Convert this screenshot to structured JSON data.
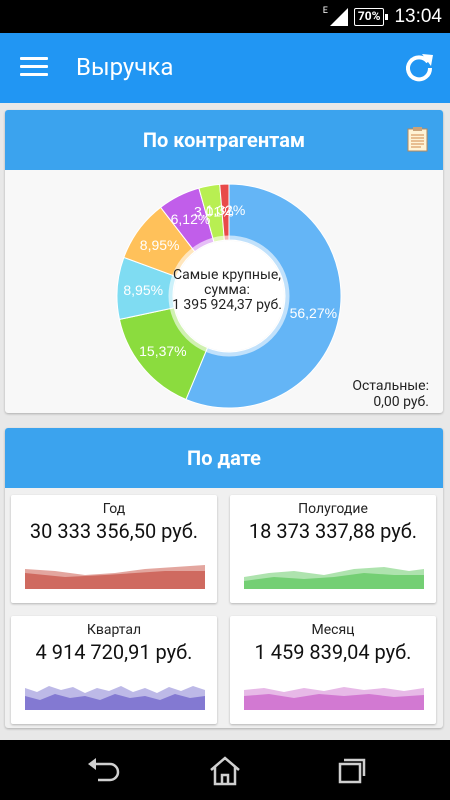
{
  "status_bar": {
    "network": "E",
    "battery": "70%",
    "time": "13:04"
  },
  "app_bar": {
    "title": "Выручка",
    "menu_icon": "hamburger-menu-icon",
    "refresh_icon": "refresh-icon"
  },
  "by_counterparty": {
    "title": "По контрагентам",
    "report_icon": "report-icon",
    "center_line1": "Самые крупные,",
    "center_line2": "сумма:",
    "center_line3": "1 395 924,37 руб.",
    "others_line1": "Остальные:",
    "others_line2": "0,00 руб."
  },
  "chart_data": {
    "type": "pie",
    "slices": [
      {
        "label": "56,27%",
        "value": 56.27,
        "color": "#64b5f6"
      },
      {
        "label": "15,37%",
        "value": 15.37,
        "color": "#8bdc3e"
      },
      {
        "label": "8,95%",
        "value": 8.95,
        "color": "#7fdcf2"
      },
      {
        "label": "8,95%",
        "value": 8.95,
        "color": "#ffc15a"
      },
      {
        "label": "6,12%",
        "value": 6.12,
        "color": "#c15eea"
      },
      {
        "label": "3,01%",
        "value": 3.01,
        "color": "#b8ef52"
      },
      {
        "label": "1,32%",
        "value": 1.32,
        "color": "#e84a4a"
      }
    ]
  },
  "by_date": {
    "title": "По дате",
    "tiles": [
      {
        "label": "Год",
        "value": "30 333 356,50 руб.",
        "color": "#c0392b"
      },
      {
        "label": "Полугодие",
        "value": "18 373 337,88 руб.",
        "color": "#4cc24c"
      },
      {
        "label": "Квартал",
        "value": "4 914 720,91 руб.",
        "color": "#5b4fc4"
      },
      {
        "label": "Месяц",
        "value": "1 459 839,04 руб.",
        "color": "#c44fc4"
      }
    ]
  },
  "nav_bar": {
    "back_icon": "back-icon",
    "home_icon": "home-icon",
    "recents_icon": "recent-apps-icon"
  }
}
